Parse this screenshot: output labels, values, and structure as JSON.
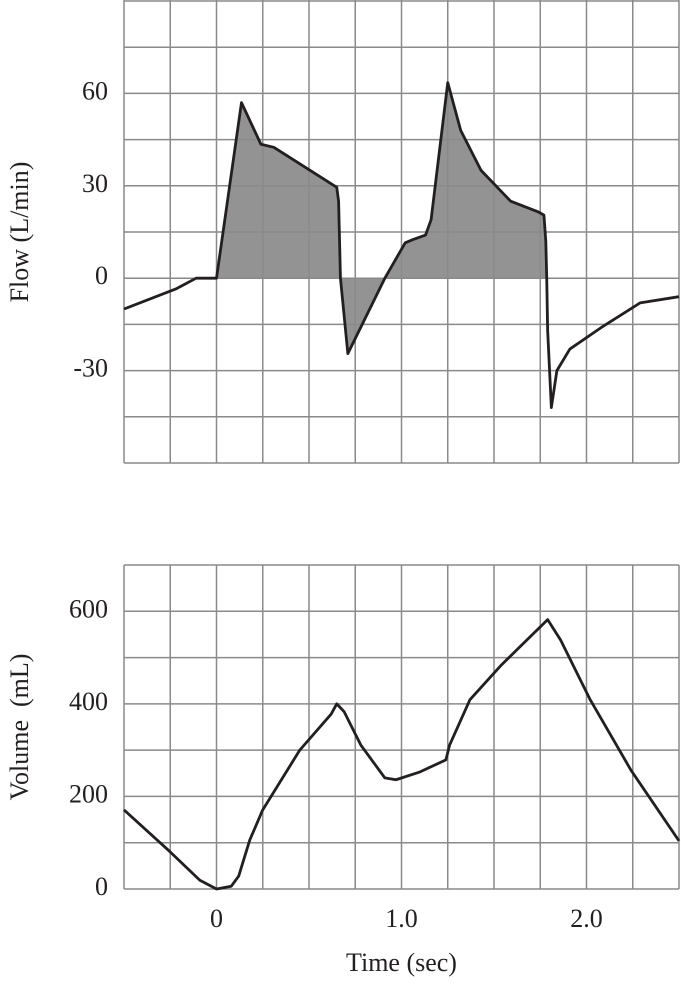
{
  "chart_data": [
    {
      "type": "line",
      "ylabel": "Flow (L/min)",
      "color": "#231f20",
      "fill_color": "#939393",
      "fill_x": [
        0,
        1.785
      ],
      "xlim": [
        -0.5,
        2.5
      ],
      "ylim": [
        -60,
        90
      ],
      "yticks": [
        -30,
        0,
        30,
        60
      ],
      "xgrid": [
        -0.5,
        -0.25,
        0,
        0.25,
        0.5,
        0.75,
        1,
        1.25,
        1.5,
        1.75,
        2,
        2.25,
        2.5
      ],
      "ygrid": [
        -60,
        -45,
        -30,
        -15,
        0,
        15,
        30,
        45,
        60,
        75,
        90
      ],
      "x": [
        -0.5,
        -0.22,
        -0.11,
        0,
        0.135,
        0.24,
        0.31,
        0.65,
        0.66,
        0.67,
        0.71,
        0.91,
        1.02,
        1.06,
        1.13,
        1.16,
        1.25,
        1.32,
        1.43,
        1.59,
        1.74,
        1.77,
        1.78,
        1.785,
        1.79,
        1.81,
        1.84,
        1.91,
        2.08,
        2.29,
        2.5
      ],
      "values": [
        -10,
        -3.5,
        0,
        0,
        57,
        43.5,
        42.5,
        29.5,
        25,
        0,
        -24.5,
        0,
        11.5,
        12.5,
        14,
        19,
        63.5,
        48,
        35,
        25,
        21.5,
        20.5,
        12,
        0,
        -17,
        -42,
        -30,
        -23,
        -16,
        -8,
        -6
      ]
    },
    {
      "type": "line",
      "ylabel": "Volume  (mL)",
      "xlabel": "Time (sec)",
      "color": "#231f20",
      "xlim": [
        -0.5,
        2.5
      ],
      "ylim": [
        0,
        700
      ],
      "yticks": [
        0,
        200,
        400,
        600
      ],
      "xticks": [
        0,
        {
          "value": 1,
          "label": "1.0"
        },
        {
          "value": 2,
          "label": "2.0"
        }
      ],
      "xgrid": [
        -0.5,
        -0.25,
        0,
        0.25,
        0.5,
        0.75,
        1,
        1.25,
        1.5,
        1.75,
        2,
        2.25,
        2.5
      ],
      "ygrid": [
        0,
        100,
        200,
        300,
        400,
        500,
        600,
        700
      ],
      "x": [
        -0.5,
        -0.25,
        -0.09,
        0,
        0.08,
        0.12,
        0.18,
        0.25,
        0.45,
        0.62,
        0.65,
        0.69,
        0.78,
        0.91,
        0.97,
        1.1,
        1.24,
        1.26,
        1.37,
        1.54,
        1.79,
        1.86,
        2.02,
        2.24,
        2.5
      ],
      "values": [
        171,
        80,
        19,
        0,
        6,
        28,
        106,
        171,
        300,
        378,
        400,
        383,
        311,
        240,
        236,
        253,
        279,
        311,
        409,
        484,
        582,
        538,
        409,
        257,
        104
      ]
    }
  ]
}
